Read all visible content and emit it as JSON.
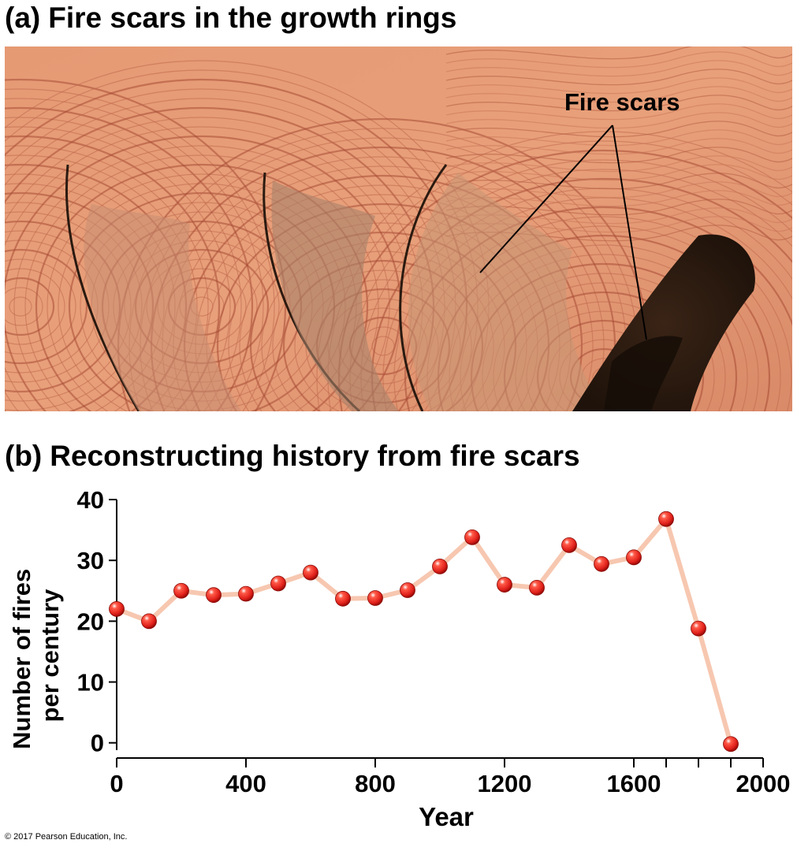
{
  "panel_a": {
    "label": "(a)",
    "title": "Fire scars in the growth rings",
    "annotation": "Fire scars"
  },
  "panel_b": {
    "label": "(b)",
    "title": "Reconstructing history from fire scars"
  },
  "copyright": "© 2017 Pearson Education, Inc.",
  "colors": {
    "wood_light": "#e8a07a",
    "wood_dark": "#b85a40",
    "scar_dark": "#2a1a10",
    "line": "#f7c7b0",
    "marker": "#e0201a"
  },
  "chart_data": {
    "type": "line",
    "xlabel": "Year",
    "ylabel_lines": [
      "Number of fires",
      "per century"
    ],
    "xlim": [
      0,
      2000
    ],
    "ylim": [
      -2.5,
      40
    ],
    "x_ticks": [
      0,
      400,
      800,
      1200,
      1600,
      2000
    ],
    "x_minor_ticks": [
      1700,
      1800,
      1900
    ],
    "y_ticks": [
      0,
      10,
      20,
      30,
      40
    ],
    "grid": false,
    "series": [
      {
        "x": [
          0,
          100,
          200,
          300,
          400,
          500,
          600,
          700,
          800,
          900,
          1000,
          1100,
          1200,
          1300,
          1400,
          1500,
          1600,
          1700,
          1800,
          1900
        ],
        "y": [
          22,
          20,
          25,
          24.3,
          24.5,
          26.2,
          28,
          23.7,
          23.8,
          25.1,
          29,
          33.8,
          26,
          25.5,
          32.5,
          29.4,
          30.5,
          36.8,
          18.8,
          -0.2
        ]
      }
    ]
  }
}
